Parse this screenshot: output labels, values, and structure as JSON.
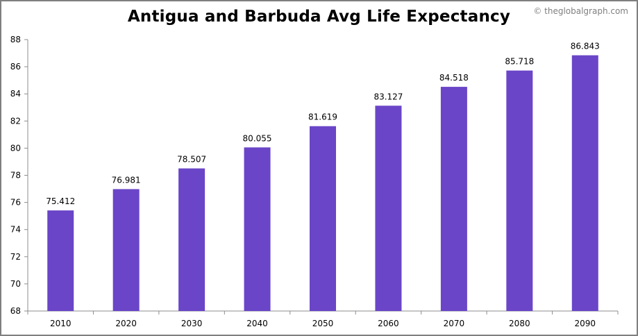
{
  "watermark": "© theglobalgraph.com",
  "colors": {
    "bar": "#6a45c7",
    "axis": "#8c8c8c",
    "frame": "#7f7f7f"
  },
  "chart_data": {
    "type": "bar",
    "title": "Antigua and Barbuda Avg Life Expectancy",
    "xlabel": "",
    "ylabel": "",
    "categories": [
      "2010",
      "2020",
      "2030",
      "2040",
      "2050",
      "2060",
      "2070",
      "2080",
      "2090"
    ],
    "values": [
      75.412,
      76.981,
      78.507,
      80.055,
      81.619,
      83.127,
      84.518,
      85.718,
      86.843
    ],
    "data_labels": [
      "75.412",
      "76.981",
      "78.507",
      "80.055",
      "81.619",
      "83.127",
      "84.518",
      "85.718",
      "86.843"
    ],
    "ylim": [
      68,
      88
    ],
    "yticks": [
      68,
      70,
      72,
      74,
      76,
      78,
      80,
      82,
      84,
      86,
      88
    ],
    "grid": false,
    "legend": "none"
  }
}
